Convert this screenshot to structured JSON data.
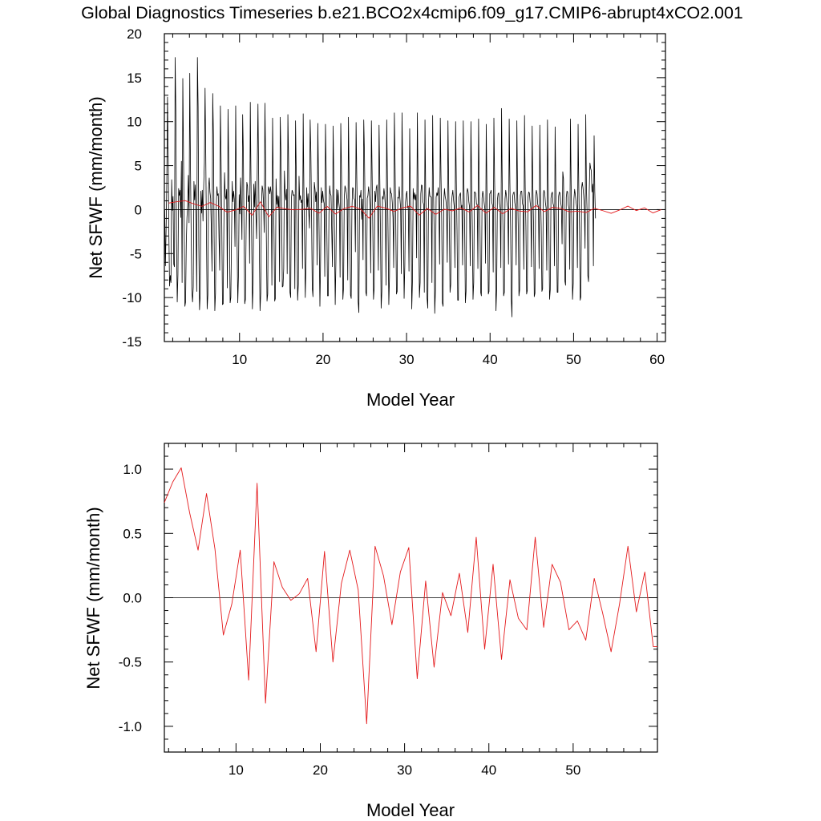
{
  "chart_data": [
    {
      "type": "line",
      "title": "Global Diagnostics Timeseries b.e21.BCO2x4cmip6.f09_g17.CMIP6-abrupt4xCO2.001",
      "xlabel": "Model Year",
      "ylabel": "Net SFWF (mm/month)",
      "xlim": [
        1,
        61
      ],
      "ylim": [
        -15,
        20
      ],
      "xticks": [
        10,
        20,
        30,
        40,
        50,
        60
      ],
      "yticks": [
        -15,
        -10,
        -5,
        0,
        5,
        10,
        15,
        20
      ],
      "ytick_labels": [
        "-15",
        "-10",
        "-5",
        "0",
        "5",
        "10",
        "15",
        "20"
      ],
      "grid": false,
      "zero_line": true,
      "series": [
        {
          "color": "#000000",
          "x_start": 1.0417,
          "x_step": 0.08333,
          "values": [
            0.0,
            -6.4,
            -2.3,
            3.1,
            12.8,
            6.1,
            -2.9,
            -8.7,
            -7.5,
            -8.3,
            3.4,
            -0.1,
            1.5,
            -6.2,
            -6.5,
            17.3,
            11.2,
            -3.5,
            -10.5,
            -7.4,
            2.4,
            1.6,
            2.2,
            -0.9,
            5.5,
            -8.3,
            14.9,
            6.2,
            -2.1,
            -11.0,
            -10.5,
            -3.8,
            -0.9,
            0.6,
            3.9,
            -1.5,
            15.5,
            5.0,
            -2.6,
            -9.2,
            -10.5,
            -8.8,
            3.2,
            1.1,
            2.8,
            -2.2,
            -9.3,
            17.3,
            11.7,
            -3.9,
            -11.4,
            -9.6,
            2.1,
            -0.4,
            2.2,
            -1.3,
            2.6,
            5.3,
            13.8,
            6.1,
            -3.0,
            -11.3,
            -9.7,
            2.5,
            3.6,
            2.0,
            1.3,
            -2.4,
            -7.0,
            13.2,
            8.5,
            -3.1,
            -11.5,
            -9.5,
            0.3,
            2.6,
            1.6,
            1.8,
            -3.2,
            -6.9,
            11.8,
            5.9,
            -1.5,
            -10.8,
            -10.7,
            -2.1,
            4.2,
            1.5,
            1.2,
            2.3,
            -8.9,
            11.4,
            5.1,
            -2.3,
            -10.6,
            -10.0,
            -3.2,
            3.2,
            0.9,
            2.1,
            1.2,
            -4.2,
            11.8,
            2.3,
            -3.9,
            -10.6,
            -7.5,
            1.7,
            -0.5,
            3.6,
            0.7,
            -3.4,
            10.8,
            6.4,
            -2.8,
            -10.7,
            -10.2,
            -2.2,
            3.1,
            2.7,
            0.9,
            1.6,
            -6.1,
            12.2,
            3.3,
            -3.5,
            -11.3,
            -8.6,
            2.9,
            0.3,
            3.2,
            -0.4,
            -3.3,
            4.8,
            12.0,
            4.0,
            -5.0,
            -11.5,
            -9.5,
            0.4,
            2.7,
            2.3,
            0.7,
            -2.6,
            12.1,
            5.5,
            -2.8,
            -10.4,
            -9.6,
            2.6,
            2.3,
            1.8,
            2.6,
            1.9,
            -8.6,
            10.4,
            2.9,
            -2.2,
            -10.4,
            -10.1,
            3.5,
            0.6,
            1.6,
            0.2,
            1.5,
            -8.2,
            10.5,
            6.6,
            -0.2,
            -8.8,
            -8.7,
            -6.7,
            4.4,
            2.0,
            1.1,
            2.3,
            -7.3,
            10.8,
            5.6,
            -1.4,
            -9.4,
            -10.0,
            1.2,
            2.2,
            2.0,
            1.6,
            1.7,
            -9.0,
            10.1,
            4.3,
            -2.8,
            -10.3,
            -8.5,
            3.8,
            1.1,
            1.6,
            0.8,
            1.1,
            -6.7,
            10.9,
            2.1,
            -3.6,
            -10.0,
            -6.1,
            2.5,
            0.3,
            1.8,
            -0.3,
            -2.1,
            10.2,
            6.5,
            -0.6,
            -8.9,
            -9.9,
            -3.0,
            3.1,
            2.3,
            0.9,
            2.0,
            -6.3,
            9.8,
            3.5,
            -3.6,
            -11.0,
            -5.7,
            2.5,
            0.8,
            2.1,
            1.1,
            0.7,
            -7.6,
            9.7,
            4.4,
            -2.5,
            -9.8,
            -9.8,
            -0.5,
            2.7,
            1.8,
            1.6,
            -2.5,
            -6.5,
            9.5,
            3.3,
            -3.0,
            -10.8,
            -5.9,
            2.3,
            0.1,
            2.2,
            1.0,
            0.2,
            -7.7,
            9.8,
            4.4,
            -1.5,
            -10.2,
            -8.9,
            1.3,
            2.7,
            2.4,
            1.9,
            1.1,
            -8.0,
            10.5,
            3.6,
            -2.0,
            -9.7,
            -10.1,
            0.1,
            2.5,
            2.4,
            1.3,
            1.1,
            -4.8,
            9.9,
            3.6,
            -1.4,
            -10.5,
            -11.7,
            1.6,
            1.4,
            2.2,
            -1.1,
            1.2,
            -5.7,
            10.2,
            6.4,
            -0.8,
            -9.4,
            -9.8,
            1.3,
            1.6,
            2.6,
            1.8,
            0.3,
            -7.2,
            10.1,
            4.3,
            -2.0,
            -10.2,
            -8.9,
            2.1,
            0.9,
            2.5,
            2.8,
            0.2,
            -6.9,
            9.6,
            3.9,
            -2.5,
            -11.2,
            -9.3,
            1.5,
            1.2,
            2.4,
            1.7,
            0.4,
            -8.6,
            10.2,
            3.5,
            -3.1,
            -10.8,
            -7.6,
            2.5,
            1.9,
            1.8,
            0.8,
            -0.9,
            -6.6,
            11.0,
            5.2,
            -1.6,
            -9.6,
            -9.3,
            1.4,
            1.3,
            2.6,
            1.2,
            0.2,
            -7.3,
            11.0,
            3.9,
            -1.4,
            -10.1,
            -6.4,
            0.8,
            1.7,
            2.1,
            0.2,
            0.4,
            -7.0,
            9.2,
            2.1,
            -1.5,
            -11.3,
            -8.1,
            2.4,
            1.2,
            1.9,
            1.1,
            1.7,
            -5.5,
            11.0,
            3.2,
            -1.9,
            -10.0,
            -8.3,
            1.8,
            2.8,
            2.7,
            0.9,
            0.6,
            -9.4,
            10.2,
            2.0,
            -1.7,
            -10.1,
            -11.2,
            0.7,
            2.5,
            1.5,
            1.5,
            1.4,
            -8.3,
            10.7,
            3.0,
            -1.6,
            -11.8,
            -9.2,
            1.4,
            1.9,
            1.6,
            2.5,
            0.0,
            -6.2,
            10.4,
            3.8,
            -1.2,
            -10.6,
            -11.0,
            0.9,
            2.4,
            1.5,
            1.1,
            0.2,
            -6.0,
            10.1,
            3.1,
            -1.9,
            -9.4,
            -8.5,
            0.7,
            1.6,
            2.2,
            1.1,
            0.3,
            -6.6,
            10.0,
            3.2,
            -2.2,
            -10.3,
            -10.3,
            1.4,
            1.7,
            1.9,
            0.1,
            0.5,
            -6.3,
            10.1,
            2.4,
            -1.9,
            -10.6,
            -9.3,
            1.8,
            2.4,
            2.0,
            0.9,
            0.3,
            -6.4,
            10.0,
            3.3,
            -1.9,
            -10.2,
            -8.3,
            2.0,
            2.0,
            1.8,
            0.6,
            0.6,
            -6.7,
            10.3,
            2.2,
            -1.9,
            -9.4,
            -9.8,
            1.3,
            2.1,
            1.6,
            0.8,
            0.1,
            -6.1,
            9.7,
            2.2,
            -2.0,
            -9.6,
            -9.3,
            1.8,
            1.9,
            2.2,
            0.8,
            0.5,
            -7.1,
            10.4,
            3.4,
            -1.6,
            -11.5,
            -9.0,
            1.1,
            1.8,
            1.9,
            0.7,
            0.2,
            -6.6,
            11.5,
            2.7,
            -1.9,
            -9.8,
            -9.4,
            1.2,
            2.2,
            1.6,
            0.6,
            0.1,
            -6.2,
            10.3,
            3.0,
            -2.0,
            -10.2,
            -12.2,
            1.5,
            1.9,
            2.0,
            0.8,
            0.3,
            -6.3,
            10.1,
            2.2,
            -1.9,
            -9.8,
            -9.1,
            1.6,
            2.1,
            2.1,
            0.7,
            0.4,
            -6.8,
            10.7,
            2.5,
            -2.0,
            -9.6,
            -9.2,
            1.4,
            2.0,
            1.9,
            0.9,
            0.2,
            -6.5,
            9.5,
            2.4,
            -1.8,
            -9.9,
            -9.5,
            1.6,
            2.2,
            1.8,
            0.6,
            0.3,
            -6.7,
            9.6,
            2.1,
            -2.0,
            -9.3,
            -9.0,
            1.8,
            2.2,
            1.9,
            0.8,
            0.2,
            -6.9,
            10.2,
            3.3,
            -1.8,
            -10.2,
            -9.1,
            1.3,
            1.8,
            2.0,
            0.7,
            0.4,
            -6.4,
            9.4,
            2.6,
            -2.0,
            -9.4,
            -9.4,
            1.5,
            2.0,
            1.9,
            0.8,
            0.3,
            -3.9,
            4.3,
            3.5,
            -1.6,
            -8.1,
            -8.6,
            1.4,
            2.1,
            2.0,
            0.5,
            0.1,
            -6.8,
            10.3,
            2.8,
            -2.0,
            -10.2,
            -8.4,
            1.2,
            2.3,
            1.7,
            0.9,
            0.3,
            -6.6,
            9.7,
            2.5,
            -2.1,
            -10.3,
            -9.9,
            2.4,
            3.1,
            2.5,
            1.6,
            0.3,
            -4.4,
            10.8,
            2.4,
            -0.5,
            -7.5,
            -8.2,
            2.0,
            5.3,
            4.7,
            4.4,
            2.0,
            2.9,
            -6.4,
            8.4,
            2.0,
            -1.0
          ]
        },
        {
          "color": "#e41a1c",
          "x": [
            1.5,
            2.5,
            3.5,
            4.5,
            5.5,
            6.5,
            7.5,
            8.5,
            9.5,
            10.5,
            11.5,
            12.5,
            13.5,
            14.5,
            15.5,
            16.5,
            17.5,
            18.5,
            19.5,
            20.5,
            21.5,
            22.5,
            23.5,
            24.5,
            25.5,
            26.5,
            27.5,
            28.5,
            29.5,
            30.5,
            31.5,
            32.5,
            33.5,
            34.5,
            35.5,
            36.5,
            37.5,
            38.5,
            39.5,
            40.5,
            41.5,
            42.5,
            43.5,
            44.5,
            45.5,
            46.5,
            47.5,
            48.5,
            49.5,
            50.5,
            51.5,
            52.5,
            53.5,
            54.5,
            55.5,
            56.5,
            57.5,
            58.5,
            59.5,
            60.5
          ],
          "values": [
            0.74,
            0.9,
            1.01,
            0.66,
            0.37,
            0.81,
            0.38,
            -0.29,
            -0.05,
            0.37,
            -0.64,
            0.89,
            -0.82,
            0.28,
            0.08,
            -0.02,
            0.03,
            0.15,
            -0.42,
            0.36,
            -0.5,
            0.11,
            0.37,
            0.06,
            -0.98,
            0.4,
            0.17,
            -0.21,
            0.2,
            0.39,
            -0.63,
            0.13,
            -0.54,
            0.04,
            -0.14,
            0.19,
            -0.27,
            0.47,
            -0.4,
            0.26,
            -0.48,
            0.14,
            -0.16,
            -0.25,
            0.47,
            -0.23,
            0.26,
            0.12,
            -0.25,
            -0.18,
            -0.33,
            0.15,
            -0.12,
            -0.42,
            -0.05,
            0.4,
            -0.11,
            0.2,
            -0.38,
            0.0
          ]
        }
      ]
    },
    {
      "type": "line",
      "title": "",
      "xlabel": "Model Year",
      "ylabel": "Net SFWF (mm/month)",
      "xlim": [
        1.5,
        60
      ],
      "ylim": [
        -1.2,
        1.2
      ],
      "xticks": [
        10,
        20,
        30,
        40,
        50
      ],
      "yticks": [
        -1.0,
        -0.5,
        0.0,
        0.5,
        1.0
      ],
      "ytick_labels": [
        "-1.0",
        "-0.5",
        "0.0",
        "0.5",
        "1.0"
      ],
      "grid": false,
      "zero_line": true,
      "series": [
        {
          "color": "#e41a1c",
          "x": [
            1.5,
            2.5,
            3.5,
            4.5,
            5.5,
            6.5,
            7.5,
            8.5,
            9.5,
            10.5,
            11.5,
            12.5,
            13.5,
            14.5,
            15.5,
            16.5,
            17.5,
            18.5,
            19.5,
            20.5,
            21.5,
            22.5,
            23.5,
            24.5,
            25.5,
            26.5,
            27.5,
            28.5,
            29.5,
            30.5,
            31.5,
            32.5,
            33.5,
            34.5,
            35.5,
            36.5,
            37.5,
            38.5,
            39.5,
            40.5,
            41.5,
            42.5,
            43.5,
            44.5,
            45.5,
            46.5,
            47.5,
            48.5,
            49.5,
            50.5,
            51.5,
            52.5,
            53.5,
            54.5,
            55.5,
            56.5,
            57.5,
            58.5,
            59.5,
            60.0
          ],
          "values": [
            0.74,
            0.9,
            1.01,
            0.66,
            0.37,
            0.81,
            0.38,
            -0.29,
            -0.05,
            0.37,
            -0.64,
            0.89,
            -0.82,
            0.28,
            0.08,
            -0.02,
            0.03,
            0.15,
            -0.42,
            0.36,
            -0.5,
            0.11,
            0.37,
            0.06,
            -0.98,
            0.4,
            0.17,
            -0.21,
            0.2,
            0.39,
            -0.63,
            0.13,
            -0.54,
            0.04,
            -0.14,
            0.19,
            -0.27,
            0.47,
            -0.4,
            0.26,
            -0.48,
            0.14,
            -0.16,
            -0.25,
            0.47,
            -0.23,
            0.26,
            0.12,
            -0.25,
            -0.18,
            -0.33,
            0.15,
            -0.12,
            -0.42,
            -0.05,
            0.4,
            -0.11,
            0.2,
            -0.38,
            -0.38
          ]
        }
      ]
    }
  ]
}
